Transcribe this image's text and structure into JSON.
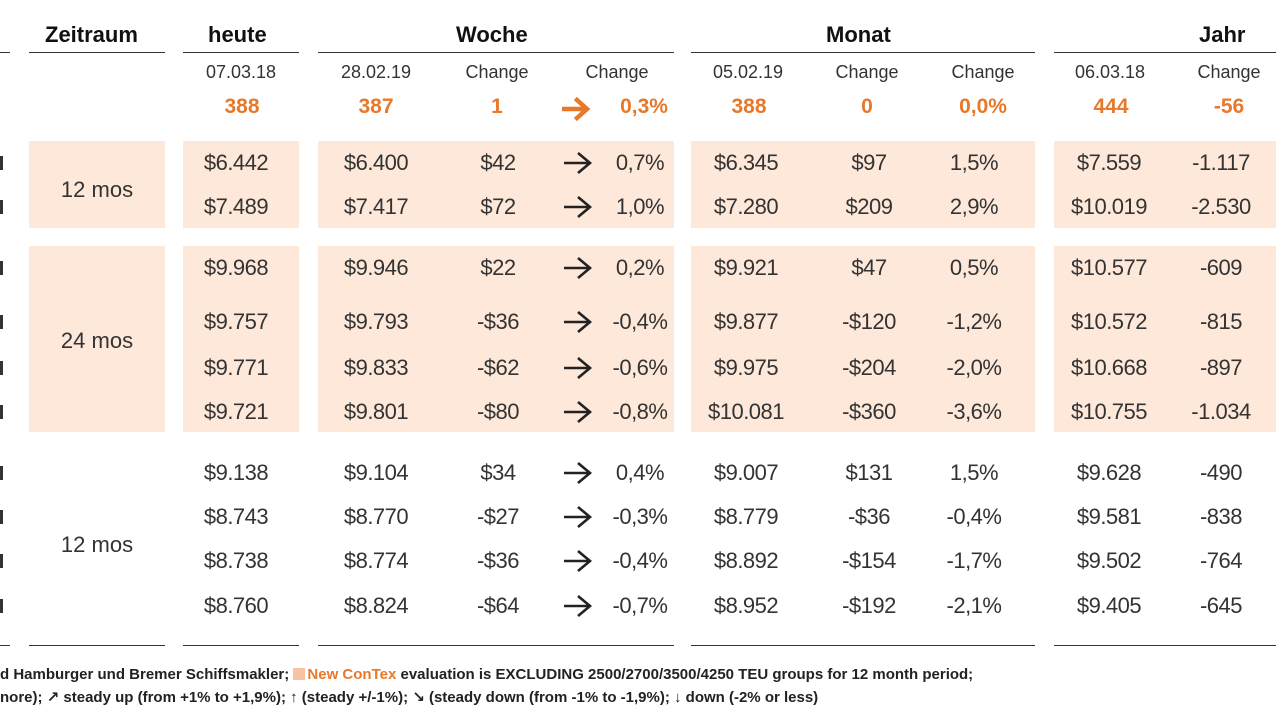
{
  "colors": {
    "accent": "#e8782a",
    "band": "#fde8da",
    "text": "#333333"
  },
  "headers": {
    "period": "Zeitraum",
    "today": "heute",
    "week": "Woche",
    "month": "Monat",
    "year": "Jahr"
  },
  "subheaders": {
    "today_date": "07.03.18",
    "week_date": "28.02.19",
    "week_change": "Change",
    "week_change_pct": "Change",
    "month_date": "05.02.19",
    "month_change": "Change",
    "month_change_pct": "Change",
    "year_date": "06.03.18",
    "year_change": "Change"
  },
  "index": {
    "today": "388",
    "week_value": "387",
    "week_change": "1",
    "week_arrow": "right-arrow-icon",
    "week_pct": "0,3%",
    "month_value": "388",
    "month_change": "0",
    "month_pct": "0,0%",
    "year_value": "444",
    "year_change": "-56"
  },
  "groups": [
    {
      "period": "12 mos"
    },
    {
      "period": "24 mos"
    },
    {
      "period": "12 mos"
    }
  ],
  "rows": [
    {
      "today": "$6.442",
      "week_val": "$6.400",
      "week_chg": "$42",
      "arrow": "right-arrow-icon",
      "week_pct": "0,7%",
      "month_val": "$6.345",
      "month_chg": "$97",
      "month_pct": "1,5%",
      "year_val": "$7.559",
      "year_chg": "-1.117"
    },
    {
      "today": "$7.489",
      "week_val": "$7.417",
      "week_chg": "$72",
      "arrow": "right-arrow-icon",
      "week_pct": "1,0%",
      "month_val": "$7.280",
      "month_chg": "$209",
      "month_pct": "2,9%",
      "year_val": "$10.019",
      "year_chg": "-2.530"
    },
    {
      "today": "$9.968",
      "week_val": "$9.946",
      "week_chg": "$22",
      "arrow": "right-arrow-icon",
      "week_pct": "0,2%",
      "month_val": "$9.921",
      "month_chg": "$47",
      "month_pct": "0,5%",
      "year_val": "$10.577",
      "year_chg": "-609"
    },
    {
      "today": "$9.757",
      "week_val": "$9.793",
      "week_chg": "-$36",
      "arrow": "right-arrow-icon",
      "week_pct": "-0,4%",
      "month_val": "$9.877",
      "month_chg": "-$120",
      "month_pct": "-1,2%",
      "year_val": "$10.572",
      "year_chg": "-815"
    },
    {
      "today": "$9.771",
      "week_val": "$9.833",
      "week_chg": "-$62",
      "arrow": "right-arrow-icon",
      "week_pct": "-0,6%",
      "month_val": "$9.975",
      "month_chg": "-$204",
      "month_pct": "-2,0%",
      "year_val": "$10.668",
      "year_chg": "-897"
    },
    {
      "today": "$9.721",
      "week_val": "$9.801",
      "week_chg": "-$80",
      "arrow": "right-arrow-icon",
      "week_pct": "-0,8%",
      "month_val": "$10.081",
      "month_chg": "-$360",
      "month_pct": "-3,6%",
      "year_val": "$10.755",
      "year_chg": "-1.034"
    },
    {
      "today": "$9.138",
      "week_val": "$9.104",
      "week_chg": "$34",
      "arrow": "right-arrow-icon",
      "week_pct": "0,4%",
      "month_val": "$9.007",
      "month_chg": "$131",
      "month_pct": "1,5%",
      "year_val": "$9.628",
      "year_chg": "-490"
    },
    {
      "today": "$8.743",
      "week_val": "$8.770",
      "week_chg": "-$27",
      "arrow": "right-arrow-icon",
      "week_pct": "-0,3%",
      "month_val": "$8.779",
      "month_chg": "-$36",
      "month_pct": "-0,4%",
      "year_val": "$9.581",
      "year_chg": "-838"
    },
    {
      "today": "$8.738",
      "week_val": "$8.774",
      "week_chg": "-$36",
      "arrow": "right-arrow-icon",
      "week_pct": "-0,4%",
      "month_val": "$8.892",
      "month_chg": "-$154",
      "month_pct": "-1,7%",
      "year_val": "$9.502",
      "year_chg": "-764"
    },
    {
      "today": "$8.760",
      "week_val": "$8.824",
      "week_chg": "-$64",
      "arrow": "right-arrow-icon",
      "week_pct": "-0,7%",
      "month_val": "$8.952",
      "month_chg": "-$192",
      "month_pct": "-2,1%",
      "year_val": "$9.405",
      "year_chg": "-645"
    }
  ],
  "footer": {
    "line1_a": "d Hamburger und Bremer Schiffsmakler;",
    "line1_hl": "New ConTex",
    "line1_b": "evaluation is EXCLUDING 2500/2700/3500/4250 TEU groups for 12 month period;",
    "line2": "nore); ↗ steady up (from +1% to +1,9%); ↑ (steady +/-1%); ↘ (steady down (from -1% to -1,9%); ↓ down (-2% or less)"
  }
}
